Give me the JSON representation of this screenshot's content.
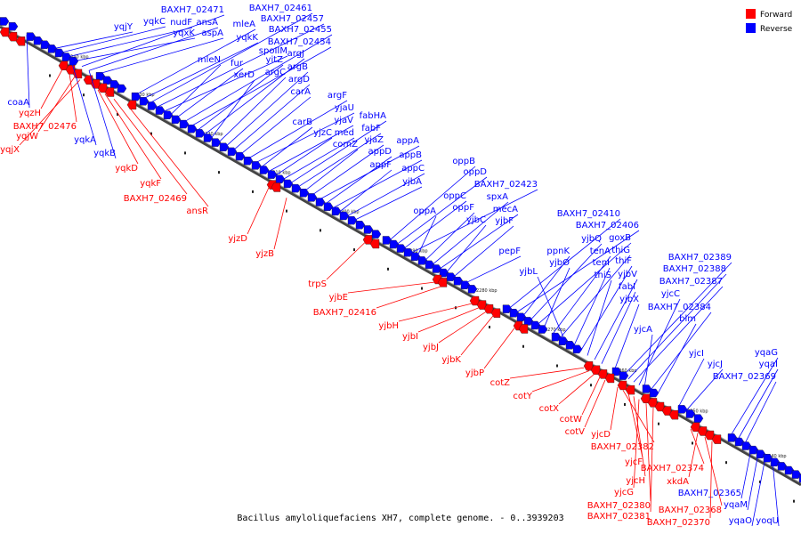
{
  "legend": {
    "forward": {
      "label": "Forward",
      "color": "#ff0000"
    },
    "reverse": {
      "label": "Reverse",
      "color": "#0000ff"
    }
  },
  "caption": "Bacillus amyloliquefaciens XH7, complete genome. - 0..3939203",
  "ticks": [
    "2340 kbp",
    "2330 kbp",
    "2320 kbp",
    "2310 kbp",
    "2300 kbp",
    "2290 kbp",
    "2280 kbp",
    "2270 kbp",
    "2260 kbp",
    "2250 kbp",
    "2240 kbp"
  ],
  "reverse_labels": [
    "coaA",
    "yqjY",
    "yqkC",
    "nudF",
    "yqxK",
    "BAXH7_02471",
    "ansA",
    "aspA",
    "mleA",
    "yqkK",
    "BAXH7_02461",
    "BAXH7_02457",
    "spoIIM",
    "mleN",
    "fur",
    "BAXH7_02455",
    "BAXH7_02454",
    "yitZ",
    "argJ",
    "xerD",
    "argC",
    "argB",
    "argD",
    "carA",
    "argF",
    "yjaU",
    "carB",
    "yjaV",
    "yjzC",
    "med",
    "fabHA",
    "fabF",
    "comZ",
    "yjaZ",
    "appA",
    "appD",
    "appB",
    "appF",
    "appC",
    "yjbA",
    "oppB",
    "oppD",
    "oppC",
    "BAXH7_02423",
    "oppA",
    "oppF",
    "spxA",
    "mecA",
    "yjbC",
    "yjbF",
    "pepF",
    "BAXH7_02410",
    "BAXH7_02406",
    "ppnK",
    "yjbQ",
    "goxB",
    "yjbO",
    "tenA",
    "thiG",
    "yjbL",
    "tenI",
    "thiF",
    "thiS",
    "yjbV",
    "fabI",
    "yjbX",
    "BAXH7_02389",
    "BAXH7_02388",
    "BAXH7_02387",
    "yjcC",
    "yjcA",
    "BAXH7_02384",
    "blm",
    "yjcI",
    "yjcJ",
    "yqaG",
    "yqaI",
    "BAXH7_02369",
    "BAXH7_02365",
    "yqaM",
    "yqaO",
    "yoqU",
    "yqkA",
    "yqkB"
  ],
  "forward_labels": [
    "yqzH",
    "BAXH7_02476",
    "yqjW",
    "yqjX",
    "yqkD",
    "yqkF",
    "BAXH7_02469",
    "ansR",
    "yjzD",
    "yjzB",
    "trpS",
    "yjbE",
    "BAXH7_02416",
    "yjbH",
    "yjbI",
    "yjbJ",
    "yjbK",
    "yjbP",
    "cotZ",
    "cotY",
    "cotX",
    "cotW",
    "cotV",
    "yjcD",
    "BAXH7_02382",
    "yjcF",
    "yjcH",
    "yjcG",
    "BAXH7_02380",
    "BAXH7_02381",
    "BAXH7_02374",
    "xkdA",
    "BAXH7_02368",
    "BAXH7_02370"
  ]
}
